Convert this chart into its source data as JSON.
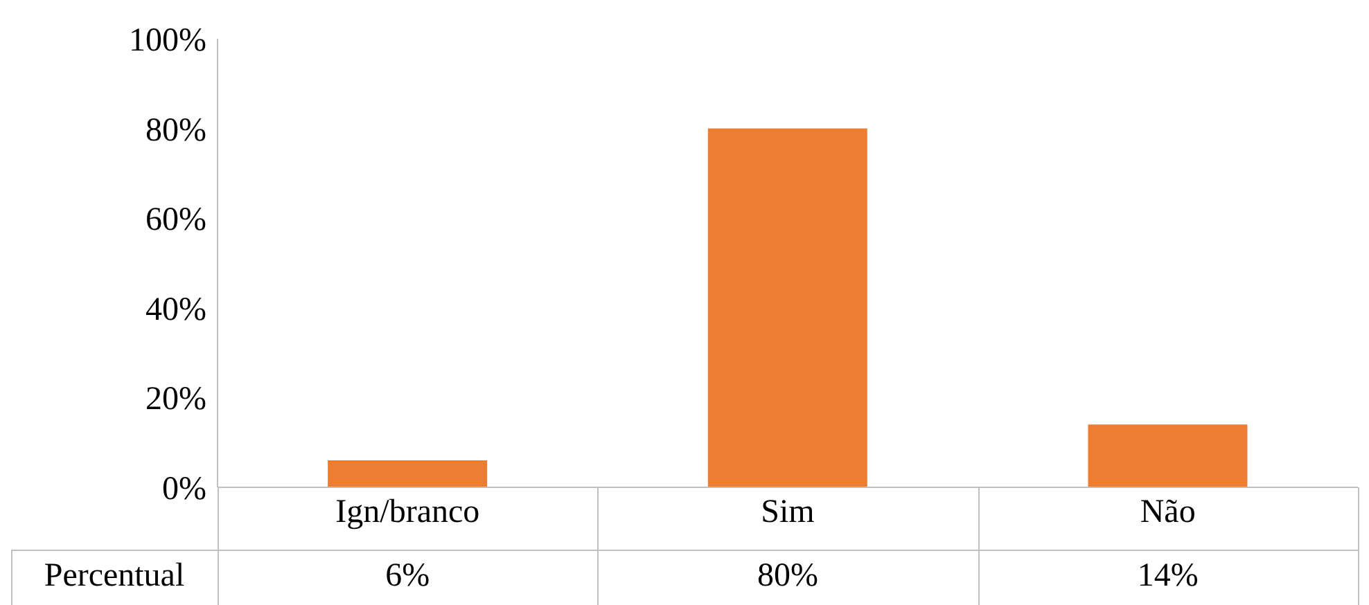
{
  "chart_data": {
    "type": "bar",
    "categories": [
      "Ign/branco",
      "Sim",
      "Não"
    ],
    "series": [
      {
        "name": "Percentual",
        "color": "#ed7d31",
        "values": [
          6,
          80,
          14
        ],
        "value_labels": [
          "6%",
          "80%",
          "14%"
        ]
      }
    ],
    "ylim": [
      0,
      100
    ],
    "yticks": [
      {
        "value": 0,
        "label": "0%"
      },
      {
        "value": 20,
        "label": "20%"
      },
      {
        "value": 40,
        "label": "40%"
      },
      {
        "value": 60,
        "label": "60%"
      },
      {
        "value": 80,
        "label": "80%"
      },
      {
        "value": 100,
        "label": "100%"
      }
    ],
    "grid": false,
    "legend": false
  }
}
